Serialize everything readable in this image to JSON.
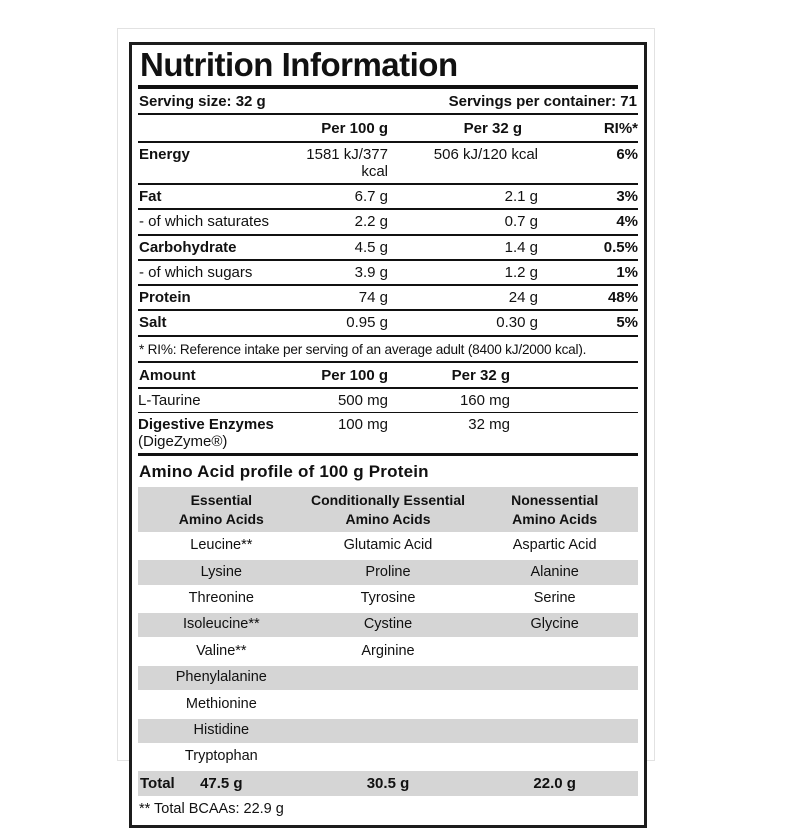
{
  "colors": {
    "background": "#ffffff",
    "label_border": "#1c1c1c",
    "stripe_gray": "#d5d5d5",
    "text": "#111111"
  },
  "label": {
    "title": "Nutrition Information",
    "serving_size": "Serving size: 32 g",
    "servings_per_container": "Servings per container: 71"
  },
  "main_table": {
    "headers": {
      "per100": "Per 100 g",
      "per32": "Per 32 g",
      "ri": "RI%*"
    },
    "rows": [
      {
        "label": "Energy",
        "per100": "1581 kJ/377 kcal",
        "per32": "506 kJ/120 kcal",
        "ri": "6%"
      },
      {
        "label": "Fat",
        "per100": "6.7 g",
        "per32": "2.1 g",
        "ri": "3%"
      },
      {
        "label": "- of which saturates",
        "per100": "2.2 g",
        "per32": "0.7 g",
        "ri": "4%"
      },
      {
        "label": "Carbohydrate",
        "per100": "4.5 g",
        "per32": "1.4 g",
        "ri": "0.5%"
      },
      {
        "label": "- of which sugars",
        "per100": "3.9 g",
        "per32": "1.2 g",
        "ri": "1%"
      },
      {
        "label": "Protein",
        "per100": "74 g",
        "per32": "24 g",
        "ri": "48%"
      },
      {
        "label": "Salt",
        "per100": "0.95 g",
        "per32": "0.30 g",
        "ri": "5%"
      }
    ],
    "footnote": "* RI%: Reference intake per serving of an average adult (8400 kJ/2000 kcal)."
  },
  "amount_table": {
    "headers": {
      "label": "Amount",
      "per100": "Per 100 g",
      "per32": "Per 32 g"
    },
    "rows": [
      {
        "label": "L-Taurine",
        "sublabel": "",
        "per100": "500 mg",
        "per32": "160 mg"
      },
      {
        "label": "Digestive Enzymes",
        "sublabel": "(DigeZyme®)",
        "per100": "100 mg",
        "per32": "32 mg"
      }
    ]
  },
  "amino_section": {
    "title": "Amino Acid profile of 100 g Protein",
    "column_headers": [
      {
        "line1": "Essential",
        "line2": "Amino Acids"
      },
      {
        "line1": "Conditionally Essential",
        "line2": "Amino Acids"
      },
      {
        "line1": "Nonessential",
        "line2": "Amino Acids"
      }
    ],
    "rows": [
      [
        "Leucine**",
        "Glutamic Acid",
        "Aspartic Acid"
      ],
      [
        "Lysine",
        "Proline",
        "Alanine"
      ],
      [
        "Threonine",
        "Tyrosine",
        "Serine"
      ],
      [
        "Isoleucine**",
        "Cystine",
        "Glycine"
      ],
      [
        "Valine**",
        "Arginine",
        ""
      ],
      [
        "Phenylalanine",
        "",
        ""
      ],
      [
        "Methionine",
        "",
        ""
      ],
      [
        "Histidine",
        "",
        ""
      ],
      [
        "Tryptophan",
        "",
        ""
      ]
    ],
    "total": {
      "label": "Total",
      "values": [
        "47.5 g",
        "30.5 g",
        "22.0 g"
      ]
    },
    "footnote": "** Total BCAAs: 22.9 g"
  }
}
